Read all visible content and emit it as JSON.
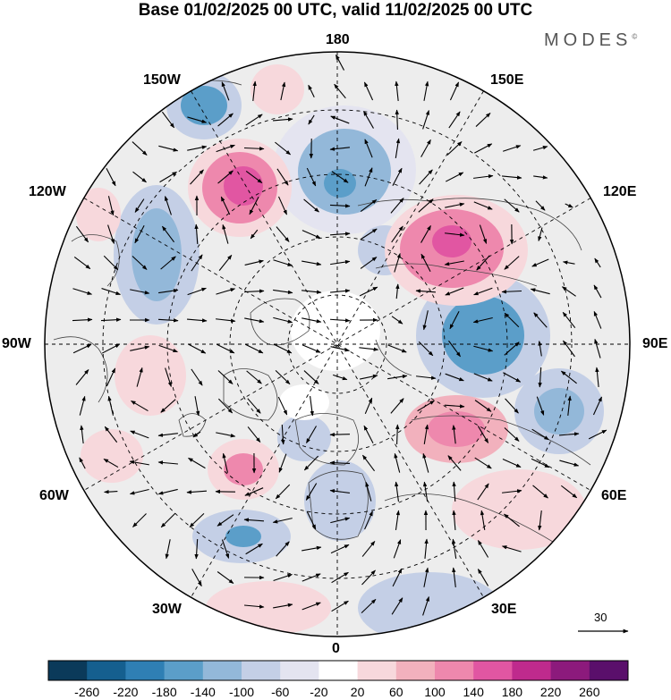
{
  "title": "Base 01/02/2025 00 UTC, valid 11/02/2025 00 UTC",
  "brand": "MODES",
  "brand_mark": "©",
  "longitude_labels": {
    "top": "180",
    "bottom": "0",
    "left": "90W",
    "right": "90E",
    "upper_left": "150W",
    "upper_right": "150E",
    "left_upper": "120W",
    "right_upper": "120E",
    "left_lower": "60W",
    "right_lower": "60E",
    "lower_left": "30W",
    "lower_right": "30E"
  },
  "vector_scale": {
    "label": "30"
  },
  "colorbar": {
    "ticks": [
      "-260",
      "-220",
      "-180",
      "-140",
      "-100",
      "-60",
      "-20",
      "20",
      "60",
      "100",
      "140",
      "180",
      "220",
      "260"
    ],
    "colors": [
      "#0b3a5a",
      "#155f8f",
      "#2f7fb4",
      "#5b9ec9",
      "#93b8d9",
      "#c4cfe6",
      "#e4e4f0",
      "#ffffff",
      "#f7d8dc",
      "#f2b1bd",
      "#ee88ad",
      "#e156a2",
      "#bf2a8d",
      "#8c1a7c",
      "#5a0f6b"
    ]
  },
  "colors": {
    "land_fill": "#ededed",
    "neutral": "#ffffff"
  }
}
